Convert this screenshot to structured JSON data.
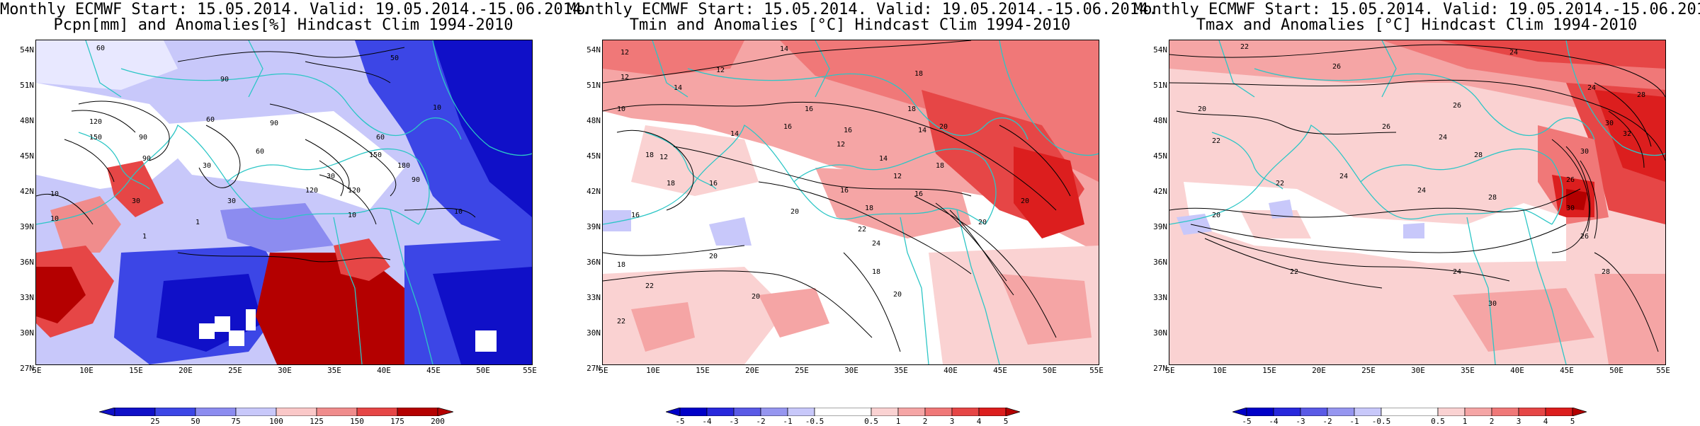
{
  "panels": [
    {
      "title_line1": "Monthly ECMWF Start: 15.05.2014. Valid: 19.05.2014.-15.06.2014.",
      "title_line2": "Pcpn[mm] and Anomalies[%] Hindcast Clim 1994-2010",
      "lat_labels": [
        "54N",
        "51N",
        "48N",
        "45N",
        "42N",
        "39N",
        "36N",
        "33N",
        "30N",
        "27N"
      ],
      "lon_labels": [
        "5E",
        "10E",
        "15E",
        "20E",
        "25E",
        "30E",
        "35E",
        "40E",
        "45E",
        "50E",
        "55E"
      ],
      "colorbar_ticks": [
        "25",
        "50",
        "75",
        "100",
        "125",
        "150",
        "175",
        "200"
      ],
      "contour_labels": [
        "60",
        "90",
        "50",
        "10",
        "120",
        "150",
        "90",
        "60",
        "90",
        "30",
        "150",
        "60",
        "30",
        "120",
        "180",
        "90",
        "60",
        "10",
        "90",
        "120",
        "10",
        "30",
        "30",
        "10",
        "1",
        "1",
        "10"
      ]
    },
    {
      "title_line1": "Monthly ECMWF Start: 15.05.2014. Valid: 19.05.2014.-15.06.2014.",
      "title_line2": "Tmin and Anomalies [°C] Hindcast Clim 1994-2010",
      "lat_labels": [
        "54N",
        "51N",
        "48N",
        "45N",
        "42N",
        "39N",
        "36N",
        "33N",
        "30N",
        "27N"
      ],
      "lon_labels": [
        "5E",
        "10E",
        "15E",
        "20E",
        "25E",
        "30E",
        "35E",
        "40E",
        "45E",
        "50E",
        "55E"
      ],
      "colorbar_ticks": [
        "-5",
        "-4",
        "-3",
        "-2",
        "-1",
        "-0.5",
        "0.5",
        "1",
        "2",
        "3",
        "4",
        "5"
      ],
      "contour_labels": [
        "12",
        "14",
        "12",
        "16",
        "12",
        "18",
        "10",
        "14",
        "16",
        "18",
        "12",
        "14",
        "16",
        "20",
        "18",
        "12",
        "16",
        "14",
        "18",
        "20",
        "16",
        "12",
        "16",
        "18",
        "22",
        "24",
        "20",
        "14",
        "16",
        "18",
        "20",
        "22",
        "20",
        "18",
        "20",
        "18",
        "22",
        "20"
      ]
    },
    {
      "title_line1": "Monthly ECMWF Start: 15.05.2014. Valid: 19.05.2014.-15.06.2014.",
      "title_line2": "Tmax and Anomalies [°C] Hindcast Clim 1994-2010",
      "lat_labels": [
        "54N",
        "51N",
        "48N",
        "45N",
        "42N",
        "39N",
        "36N",
        "33N",
        "30N",
        "27N"
      ],
      "lon_labels": [
        "5E",
        "10E",
        "15E",
        "20E",
        "25E",
        "30E",
        "35E",
        "40E",
        "45E",
        "50E",
        "55E"
      ],
      "colorbar_ticks": [
        "-5",
        "-4",
        "-3",
        "-2",
        "-1",
        "-0.5",
        "0.5",
        "1",
        "2",
        "3",
        "4",
        "5"
      ],
      "contour_labels": [
        "22",
        "24",
        "26",
        "24",
        "26",
        "28",
        "30",
        "32",
        "20",
        "22",
        "24",
        "26",
        "28",
        "30",
        "24",
        "20",
        "22",
        "24",
        "26",
        "28",
        "30",
        "22",
        "24",
        "30",
        "28",
        "26"
      ]
    }
  ],
  "colors": {
    "coast": "#2cc6c6",
    "contour": "#000000",
    "precip_bar": [
      "#1010c8",
      "#3c46e6",
      "#8c8cf0",
      "#c8c8fa",
      "#ffffff",
      "#fac8c8",
      "#f08c8c",
      "#e64646",
      "#b40000"
    ],
    "temp_bar": [
      "#0000c8",
      "#2828dc",
      "#5a5ae6",
      "#9696f0",
      "#c8c8fa",
      "#ffffff",
      "#fad2d2",
      "#f5a5a5",
      "#f07878",
      "#e64646",
      "#dc1e1e",
      "#b40000"
    ]
  }
}
